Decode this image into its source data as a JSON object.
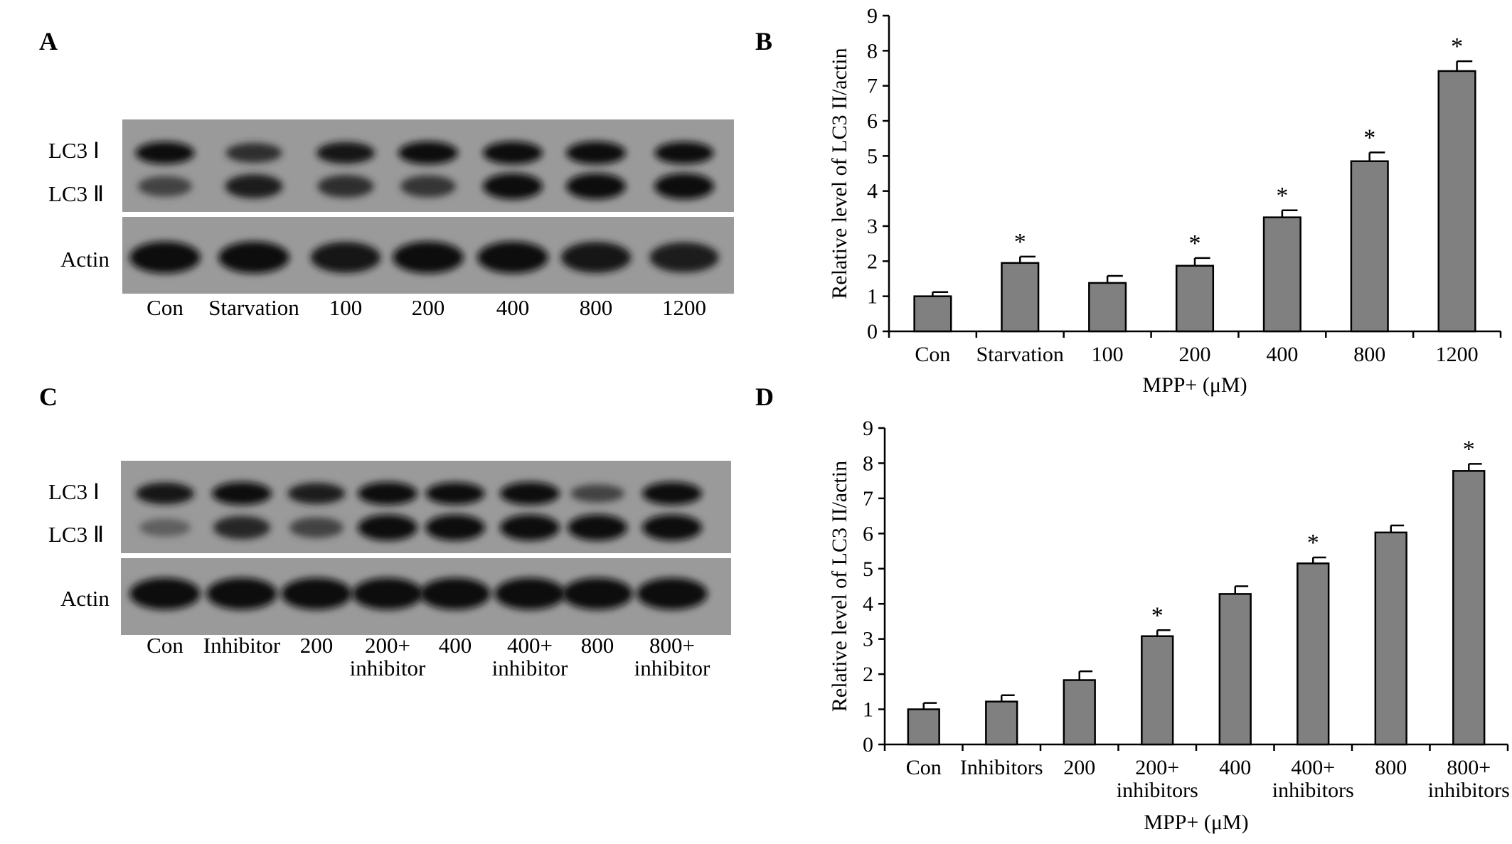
{
  "panels": {
    "A": "A",
    "B": "B",
    "C": "C",
    "D": "D"
  },
  "blot_A": {
    "row_labels": [
      "LC3 Ⅰ",
      "LC3 Ⅱ",
      "Actin"
    ],
    "lanes": [
      "Con",
      "Starvation",
      "100",
      "200",
      "400",
      "800",
      "1200"
    ],
    "band_lc3i": [
      0.95,
      0.75,
      0.9,
      1.0,
      1.0,
      1.0,
      0.95
    ],
    "band_lc3ii": [
      0.6,
      0.85,
      0.75,
      0.7,
      1.0,
      1.0,
      1.0
    ],
    "band_actin": [
      0.95,
      0.95,
      0.9,
      0.95,
      0.95,
      0.9,
      0.85
    ]
  },
  "blot_C": {
    "row_labels": [
      "LC3 Ⅰ",
      "LC3 Ⅱ",
      "Actin"
    ],
    "lanes": [
      {
        "l1": "Con",
        "l2": ""
      },
      {
        "l1": "Inhibitor",
        "l2": ""
      },
      {
        "l1": "200",
        "l2": ""
      },
      {
        "l1": "200+",
        "l2": "inhibitor"
      },
      {
        "l1": "400",
        "l2": ""
      },
      {
        "l1": "400+",
        "l2": "inhibitor"
      },
      {
        "l1": "800",
        "l2": ""
      },
      {
        "l1": "800+",
        "l2": "inhibitor"
      }
    ],
    "band_lc3i": [
      0.9,
      1.0,
      0.85,
      1.0,
      0.95,
      1.0,
      0.6,
      1.0
    ],
    "band_lc3ii": [
      0.4,
      0.8,
      0.6,
      1.0,
      1.0,
      1.0,
      1.0,
      1.0
    ],
    "band_actin": [
      0.95,
      0.95,
      0.95,
      0.95,
      0.95,
      0.95,
      0.95,
      0.95
    ]
  },
  "chart_data": [
    {
      "type": "bar",
      "panel": "B",
      "categories": [
        "Con",
        "Starvation",
        "100",
        "200",
        "400",
        "800",
        "1200"
      ],
      "values": [
        1.0,
        1.95,
        1.38,
        1.87,
        3.25,
        4.85,
        7.42
      ],
      "errors": [
        0.12,
        0.18,
        0.2,
        0.22,
        0.2,
        0.25,
        0.28
      ],
      "significant": [
        false,
        true,
        false,
        true,
        true,
        true,
        true
      ],
      "marker": "*",
      "xlabel": "MPP+ (μM)",
      "ylabel": "Relative level of LC3 II/actin",
      "ylim": [
        0,
        9
      ],
      "yticks": [
        0,
        1,
        2,
        3,
        4,
        5,
        6,
        7,
        8,
        9
      ],
      "grid": false,
      "bar_color": "#808080"
    },
    {
      "type": "bar",
      "panel": "D",
      "categories": [
        {
          "l1": "Con",
          "l2": ""
        },
        {
          "l1": "Inhibitors",
          "l2": ""
        },
        {
          "l1": "200",
          "l2": ""
        },
        {
          "l1": "200+",
          "l2": "inhibitors"
        },
        {
          "l1": "400",
          "l2": ""
        },
        {
          "l1": "400+",
          "l2": "inhibitors"
        },
        {
          "l1": "800",
          "l2": ""
        },
        {
          "l1": "800+",
          "l2": "inhibitors"
        }
      ],
      "values": [
        1.0,
        1.22,
        1.83,
        3.08,
        4.28,
        5.15,
        6.03,
        7.78
      ],
      "errors": [
        0.18,
        0.18,
        0.25,
        0.17,
        0.22,
        0.17,
        0.2,
        0.2
      ],
      "significant": [
        false,
        false,
        false,
        true,
        false,
        true,
        false,
        true
      ],
      "marker": "*",
      "xlabel": "MPP+ (μM)",
      "ylabel": "Relative level of LC3 II/actin",
      "ylim": [
        0,
        9
      ],
      "yticks": [
        0,
        1,
        2,
        3,
        4,
        5,
        6,
        7,
        8,
        9
      ],
      "grid": false,
      "bar_color": "#808080"
    }
  ]
}
